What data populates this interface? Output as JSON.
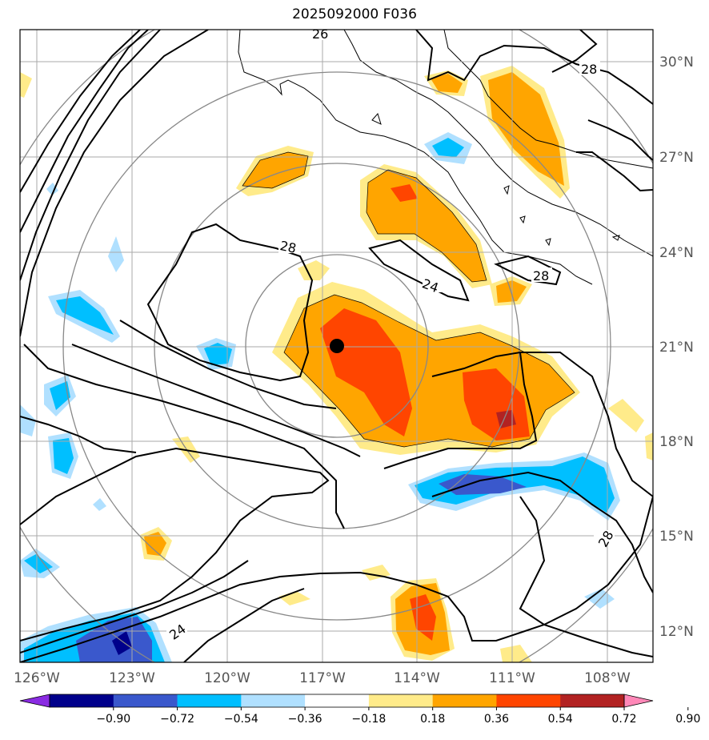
{
  "title": "2025092000 F036",
  "map": {
    "lat_labels": [
      "30°N",
      "27°N",
      "24°N",
      "21°N",
      "18°N",
      "15°N",
      "12°N"
    ],
    "lon_labels": [
      "126°W",
      "123°W",
      "120°W",
      "117°W",
      "114°W",
      "111°W",
      "108°W"
    ],
    "contour_labels": [
      "26",
      "28",
      "28",
      "28",
      "24",
      "28",
      "24"
    ],
    "center_marker": "storm-center"
  },
  "colorbar": {
    "ticks": [
      "−0.90",
      "−0.72",
      "−0.54",
      "−0.36",
      "−0.18",
      "0.18",
      "0.36",
      "0.54",
      "0.72",
      "0.90"
    ],
    "colors": [
      "#8a2be2",
      "#00008b",
      "#3a58cc",
      "#00bfff",
      "#b0e0ff",
      "#ffffff",
      "#ffeb8a",
      "#ffa500",
      "#ff4500",
      "#b22222",
      "#ff88b8"
    ]
  }
}
